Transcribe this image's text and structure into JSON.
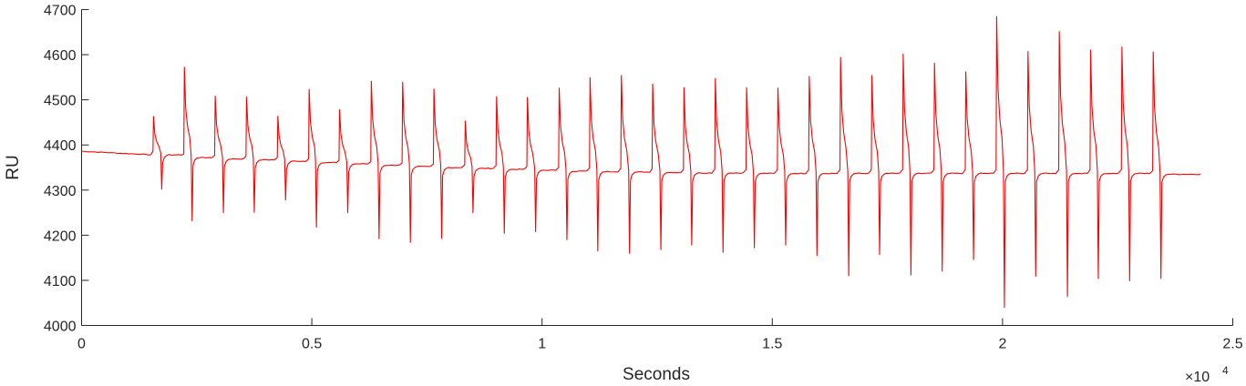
{
  "chart_data": {
    "type": "line",
    "xlabel": "Seconds",
    "ylabel": "RU",
    "x_exponent_label": "×10",
    "x_exponent_power": "4",
    "xlim": [
      0,
      25000
    ],
    "ylim": [
      4000,
      4700
    ],
    "x_ticks": [
      0,
      5000,
      10000,
      15000,
      20000,
      25000
    ],
    "x_tick_labels": [
      "0",
      "0.5",
      "1",
      "1.5",
      "2",
      "2.5"
    ],
    "y_ticks": [
      4000,
      4100,
      4200,
      4300,
      4400,
      4500,
      4600,
      4700
    ],
    "y_tick_labels": [
      "4000",
      "4100",
      "4200",
      "4300",
      "4400",
      "4500",
      "4600",
      "4700"
    ],
    "grid": false,
    "series": [
      {
        "color": "#ff0000",
        "baseline_start": 4386,
        "trace_start_x": 0,
        "trace_end_x": 24300,
        "cycles": [
          {
            "inj": 1550,
            "peak": 4463,
            "dip_x": 1740,
            "dip": 4302,
            "base": 4378
          },
          {
            "inj": 2220,
            "peak": 4572,
            "dip_x": 2400,
            "dip": 4232,
            "base": 4372
          },
          {
            "inj": 2890,
            "peak": 4508,
            "dip_x": 3080,
            "dip": 4250,
            "base": 4369
          },
          {
            "inj": 3570,
            "peak": 4506,
            "dip_x": 3750,
            "dip": 4251,
            "base": 4367
          },
          {
            "inj": 4250,
            "peak": 4464,
            "dip_x": 4430,
            "dip": 4278,
            "base": 4364
          },
          {
            "inj": 4930,
            "peak": 4523,
            "dip_x": 5100,
            "dip": 4218,
            "base": 4361
          },
          {
            "inj": 5590,
            "peak": 4478,
            "dip_x": 5780,
            "dip": 4250,
            "base": 4358
          },
          {
            "inj": 6280,
            "peak": 4541,
            "dip_x": 6460,
            "dip": 4192,
            "base": 4355
          },
          {
            "inj": 6960,
            "peak": 4539,
            "dip_x": 7140,
            "dip": 4184,
            "base": 4352
          },
          {
            "inj": 7640,
            "peak": 4524,
            "dip_x": 7820,
            "dip": 4193,
            "base": 4350
          },
          {
            "inj": 8320,
            "peak": 4453,
            "dip_x": 8500,
            "dip": 4250,
            "base": 4348
          },
          {
            "inj": 9000,
            "peak": 4507,
            "dip_x": 9180,
            "dip": 4204,
            "base": 4346
          },
          {
            "inj": 9670,
            "peak": 4505,
            "dip_x": 9860,
            "dip": 4208,
            "base": 4344
          },
          {
            "inj": 10360,
            "peak": 4526,
            "dip_x": 10540,
            "dip": 4190,
            "base": 4342
          },
          {
            "inj": 11030,
            "peak": 4549,
            "dip_x": 11210,
            "dip": 4165,
            "base": 4341
          },
          {
            "inj": 11710,
            "peak": 4554,
            "dip_x": 11900,
            "dip": 4160,
            "base": 4340
          },
          {
            "inj": 12390,
            "peak": 4535,
            "dip_x": 12580,
            "dip": 4168,
            "base": 4339
          },
          {
            "inj": 13070,
            "peak": 4527,
            "dip_x": 13250,
            "dip": 4178,
            "base": 4338
          },
          {
            "inj": 13750,
            "peak": 4547,
            "dip_x": 13930,
            "dip": 4162,
            "base": 4338
          },
          {
            "inj": 14430,
            "peak": 4527,
            "dip_x": 14610,
            "dip": 4172,
            "base": 4337
          },
          {
            "inj": 15110,
            "peak": 4526,
            "dip_x": 15290,
            "dip": 4178,
            "base": 4337
          },
          {
            "inj": 15790,
            "peak": 4552,
            "dip_x": 15970,
            "dip": 4155,
            "base": 4337
          },
          {
            "inj": 16470,
            "peak": 4594,
            "dip_x": 16660,
            "dip": 4110,
            "base": 4337
          },
          {
            "inj": 17150,
            "peak": 4554,
            "dip_x": 17330,
            "dip": 4157,
            "base": 4337
          },
          {
            "inj": 17830,
            "peak": 4601,
            "dip_x": 18010,
            "dip": 4112,
            "base": 4337
          },
          {
            "inj": 18510,
            "peak": 4581,
            "dip_x": 18690,
            "dip": 4120,
            "base": 4337
          },
          {
            "inj": 19190,
            "peak": 4562,
            "dip_x": 19370,
            "dip": 4146,
            "base": 4337
          },
          {
            "inj": 19860,
            "peak": 4684,
            "dip_x": 20040,
            "dip": 4040,
            "base": 4337
          },
          {
            "inj": 20540,
            "peak": 4607,
            "dip_x": 20720,
            "dip": 4109,
            "base": 4337
          },
          {
            "inj": 21220,
            "peak": 4651,
            "dip_x": 21410,
            "dip": 4064,
            "base": 4337
          },
          {
            "inj": 21900,
            "peak": 4610,
            "dip_x": 22080,
            "dip": 4104,
            "base": 4337
          },
          {
            "inj": 22580,
            "peak": 4617,
            "dip_x": 22760,
            "dip": 4099,
            "base": 4337
          },
          {
            "inj": 23260,
            "peak": 4606,
            "dip_x": 23440,
            "dip": 4104,
            "base": 4335
          }
        ]
      }
    ]
  }
}
